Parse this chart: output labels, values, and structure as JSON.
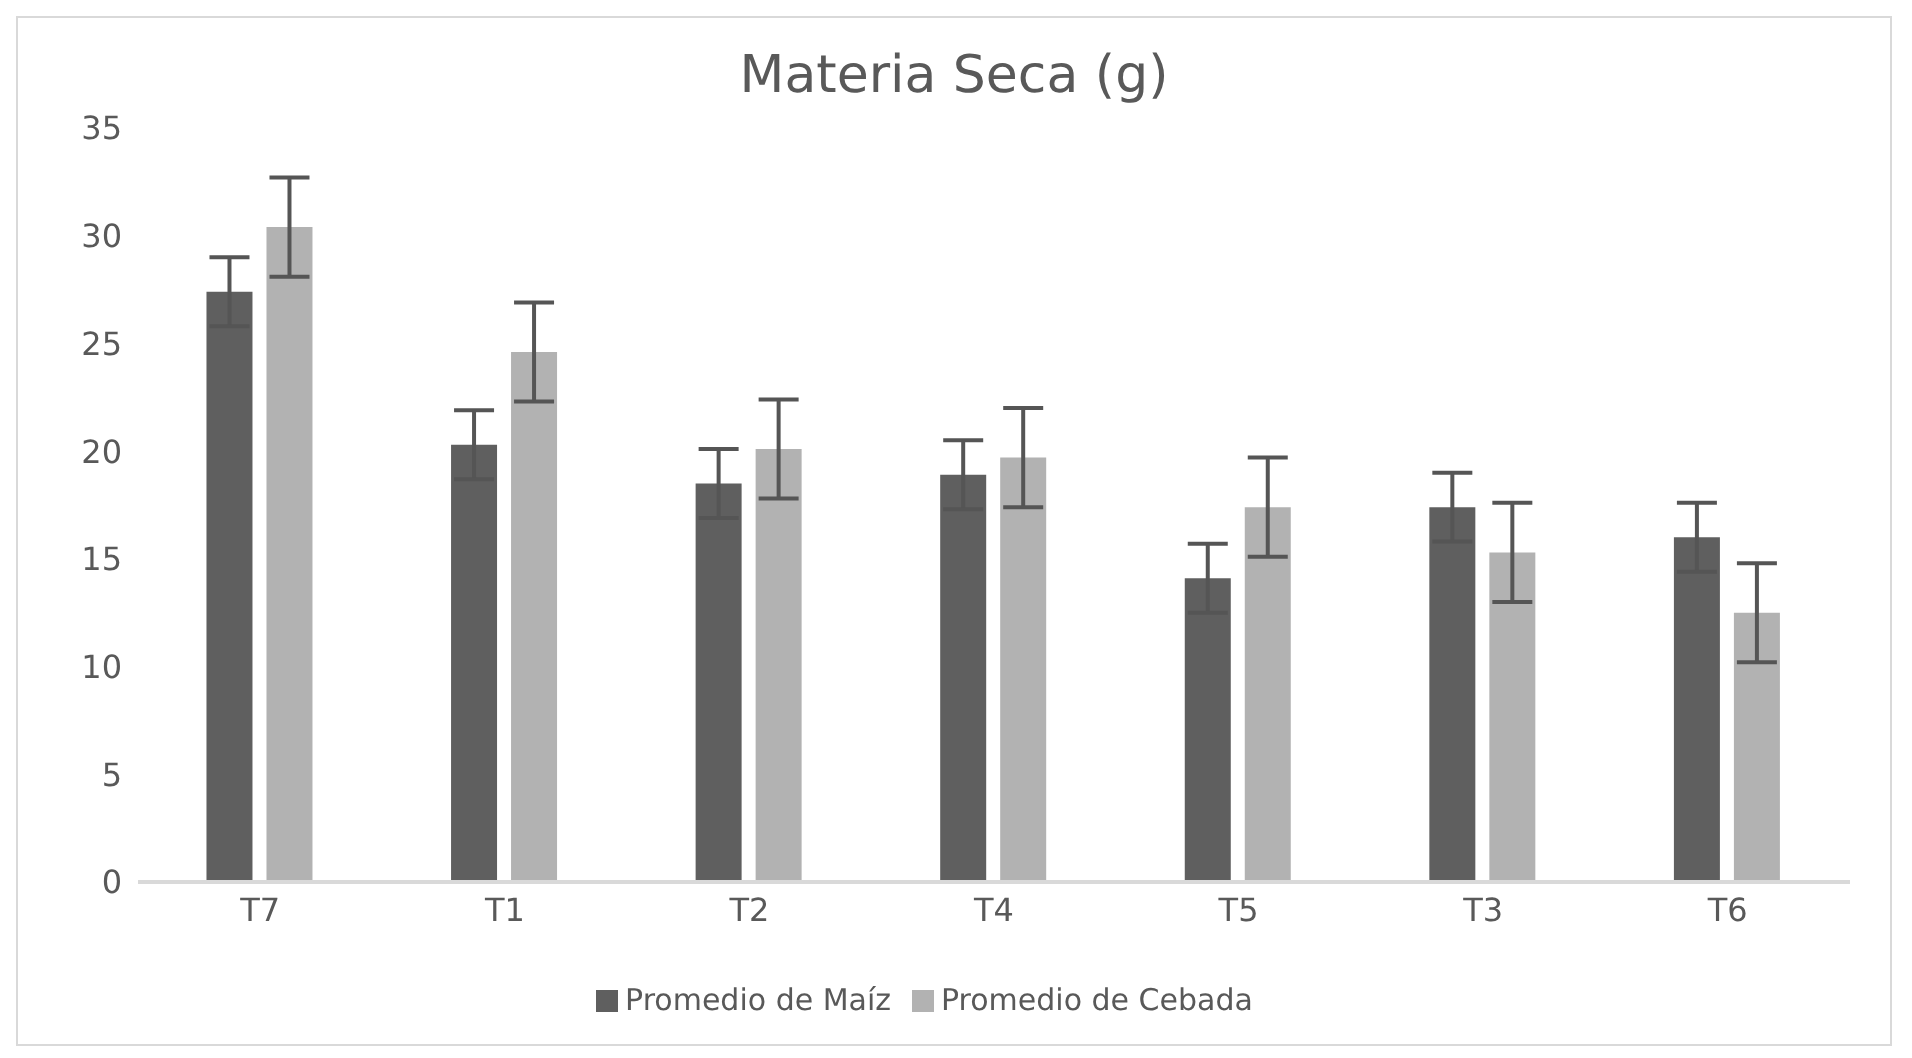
{
  "chart_data": {
    "type": "bar",
    "title": "Materia Seca (g)",
    "categories": [
      "T7",
      "T1",
      "T2",
      "T4",
      "T5",
      "T3",
      "T6"
    ],
    "series": [
      {
        "name": "Promedio de Maíz",
        "color": "#5f5f5f",
        "values": [
          27.4,
          20.3,
          18.5,
          18.9,
          14.1,
          17.4,
          16.0
        ],
        "errors": [
          1.6,
          1.6,
          1.6,
          1.6,
          1.6,
          1.6,
          1.6
        ]
      },
      {
        "name": "Promedio de Cebada",
        "color": "#b2b2b2",
        "values": [
          30.4,
          24.6,
          20.1,
          19.7,
          17.4,
          15.3,
          12.5
        ],
        "errors": [
          2.3,
          2.3,
          2.3,
          2.3,
          2.3,
          2.3,
          2.3
        ]
      }
    ],
    "ylim": [
      0,
      35
    ],
    "yticks": [
      0,
      5,
      10,
      15,
      20,
      25,
      30,
      35
    ],
    "grid": false,
    "legend": "bottom"
  }
}
